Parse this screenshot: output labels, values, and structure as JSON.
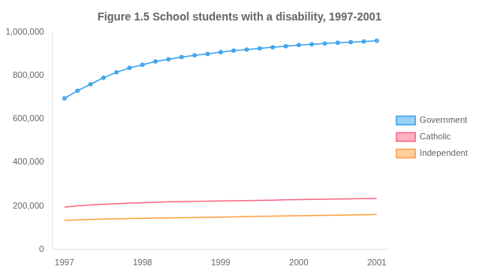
{
  "chart_data": {
    "type": "line",
    "title": "Figure 1.5 School students with a disability, 1997-2001",
    "x": [
      1997,
      1997.1666666666667,
      1997.3333333333333,
      1997.5,
      1997.6666666666667,
      1997.8333333333333,
      1998,
      1998.1666666666667,
      1998.3333333333333,
      1998.5,
      1998.6666666666667,
      1998.8333333333333,
      1999,
      1999.1666666666667,
      1999.3333333333333,
      1999.5,
      1999.6666666666667,
      1999.8333333333333,
      2000,
      2000.1666666666667,
      2000.3333333333333,
      2000.5,
      2000.6666666666667,
      2000.8333333333333,
      2001
    ],
    "series": [
      {
        "name": "Government",
        "marker": "dot",
        "values": [
          695000,
          730000,
          760000,
          790000,
          815000,
          835000,
          850000,
          865000,
          875000,
          885000,
          893000,
          900000,
          908000,
          915000,
          920000,
          925000,
          930000,
          935000,
          940000,
          944000,
          948000,
          951000,
          954000,
          957000,
          960000
        ]
      },
      {
        "name": "Catholic",
        "values": [
          195000,
          200000,
          205000,
          208000,
          210000,
          213000,
          215000,
          217000,
          219000,
          220000,
          221000,
          222000,
          223000,
          224000,
          225000,
          226000,
          227000,
          228000,
          229000,
          230000,
          231000,
          232000,
          233000,
          234000,
          235000
        ]
      },
      {
        "name": "Independent",
        "values": [
          133000,
          136000,
          138000,
          140000,
          141000,
          142000,
          143000,
          144000,
          145000,
          146000,
          147000,
          148000,
          149000,
          150000,
          151000,
          152000,
          153000,
          154000,
          155000,
          156000,
          157000,
          158000,
          159000,
          160000,
          161000
        ]
      }
    ],
    "xlim": [
      1996.85,
      2001.15
    ],
    "xticks": [
      1997,
      1998,
      1999,
      2000,
      2001
    ],
    "ylim": [
      0,
      1000000
    ],
    "yticks": [
      0,
      {
        "value": 200000,
        "label": "200,000"
      },
      {
        "value": 400000,
        "label": "400,000"
      },
      {
        "value": 600000,
        "label": "600,000"
      },
      {
        "value": 800000,
        "label": "800,000"
      },
      {
        "value": 1000000,
        "label": "1,000,000"
      }
    ],
    "grid": false,
    "legend": "right"
  }
}
